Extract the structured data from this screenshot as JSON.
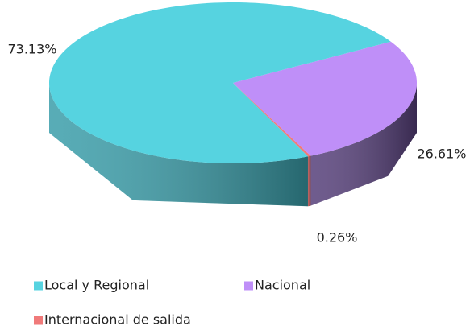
{
  "chart_data": {
    "type": "pie3d",
    "categories": [
      "Nacional",
      "Internacional de salida",
      "Local y Regional"
    ],
    "values": [
      26.61,
      0.26,
      73.13
    ],
    "value_labels": [
      "26.61%",
      "0.26%",
      "73.13%"
    ],
    "colors": [
      "#bf8ff8",
      "#f07a7a",
      "#56d3e0"
    ],
    "side_colors": [
      "#563f7a",
      "#b04848",
      "#3a9eaa"
    ],
    "legend": "bottom"
  }
}
